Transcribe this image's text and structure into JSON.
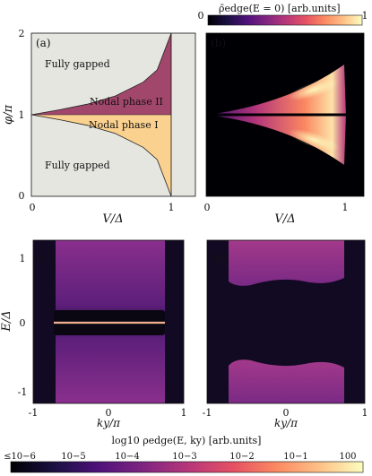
{
  "colorbar_top": {
    "title": "ρ̄edge(E = 0) [arb.units]",
    "tick_min": "0",
    "tick_max": "1"
  },
  "colorbar_bottom": {
    "title": "log10 ρedge(E, ky) [arb.units]",
    "ticks": [
      "≤10−6",
      "10−5",
      "10−4",
      "10−3",
      "10−2",
      "10−1",
      "100"
    ]
  },
  "colors": {
    "gapped": "#e6e6e1",
    "nodal_phase_2": "#a2476c",
    "nodal_phase_1": "#fbd18f",
    "nodal_phase_1_text": "#c0262b"
  },
  "chart_data": [
    {
      "panel": "a",
      "type": "area",
      "title": "",
      "xlabel": "V/Δ",
      "ylabel": "φ/π",
      "xlim": [
        0,
        1.15
      ],
      "ylim": [
        0,
        2
      ],
      "x_ticks": [
        "0",
        "1"
      ],
      "y_ticks": [
        "0",
        "1",
        "2"
      ],
      "region_labels": [
        "Fully gapped",
        "Nodal phase II",
        "Nodal phase I",
        "Fully gapped"
      ],
      "boundary_upper": {
        "x": [
          0,
          0.2,
          0.4,
          0.6,
          0.8,
          0.9,
          1.0
        ],
        "y": [
          1.0,
          1.06,
          1.13,
          1.23,
          1.4,
          1.55,
          2.0
        ]
      },
      "boundary_lower": {
        "x": [
          0,
          0.2,
          0.4,
          0.6,
          0.8,
          0.9,
          1.0
        ],
        "y": [
          1.0,
          0.94,
          0.87,
          0.77,
          0.6,
          0.45,
          0.0
        ]
      }
    },
    {
      "panel": "b",
      "type": "heatmap",
      "xlabel": "V/Δ",
      "x_ticks": [
        "0",
        "1"
      ],
      "description_values": {
        "peak_near_V": 0.9,
        "peak_phi_upper": 1.3,
        "peak_phi_lower": 0.7
      }
    },
    {
      "panel": "c",
      "type": "heatmap",
      "xlabel": "ky/π",
      "ylabel": "E/Δ",
      "x_ticks": [
        "-1",
        "0",
        "1"
      ],
      "y_ticks": [
        "1",
        "0",
        "-1"
      ],
      "ky_band": [
        -0.6,
        0.6
      ],
      "zero_energy_line": 0
    },
    {
      "panel": "d",
      "type": "heatmap",
      "xlabel": "ky/π",
      "x_ticks": [
        "-1",
        "0",
        "1"
      ],
      "ky_band": [
        -0.65,
        0.65
      ],
      "gap": [
        -0.55,
        0.55
      ]
    }
  ],
  "panel_labels": {
    "a": "(a)",
    "b": "(b)",
    "c": "(c)",
    "d": "(d)"
  }
}
